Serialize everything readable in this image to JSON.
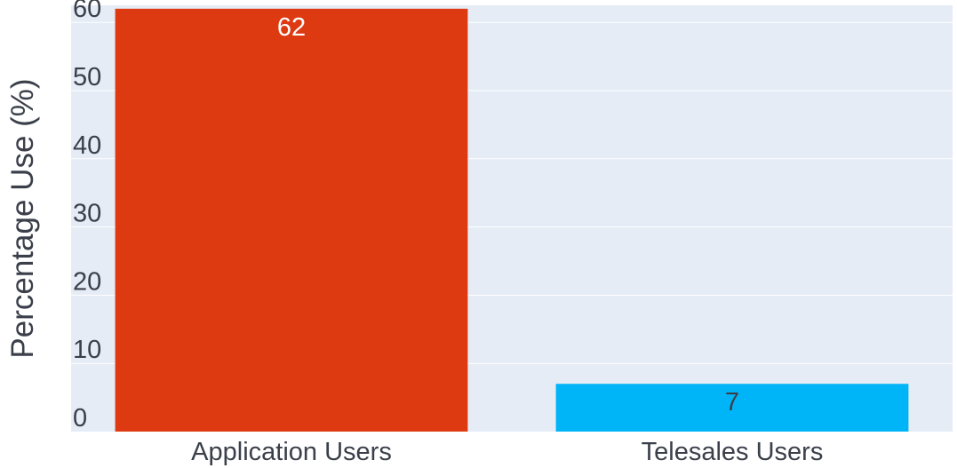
{
  "chart_data": {
    "type": "bar",
    "categories": [
      "Application Users",
      "Telesales Users"
    ],
    "values": [
      62,
      7
    ],
    "value_labels": [
      "62",
      "7"
    ],
    "bar_colors": [
      "#dd3a12",
      "#00b5f7"
    ],
    "value_label_colors": [
      "#ffffff",
      "#3a3f4a"
    ],
    "title": "",
    "xlabel": "",
    "ylabel": "Percentage Use (%)",
    "ylim": [
      0,
      62.5
    ],
    "yticks": [
      0,
      10,
      20,
      30,
      40,
      50,
      60
    ],
    "ytick_labels": [
      "0",
      "10",
      "20",
      "30",
      "40",
      "50",
      "60"
    ],
    "grid": true,
    "legend": "none",
    "plot_bg_color": "#e5ecf6",
    "gridline_color": "#ffffff"
  }
}
